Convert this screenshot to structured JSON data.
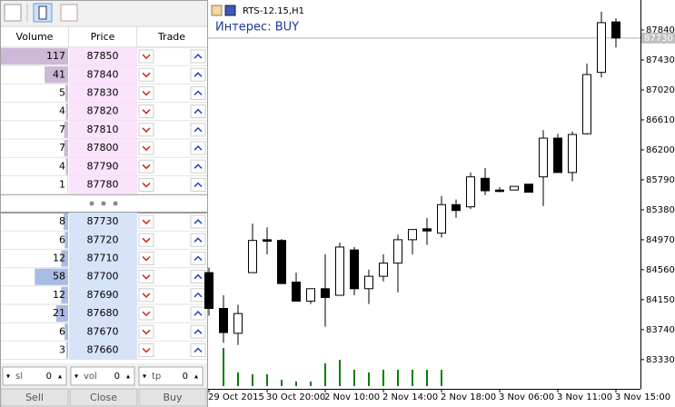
{
  "depth_of_market": {
    "headers": [
      "Volume",
      "Price",
      "Trade"
    ],
    "sell_rows": [
      {
        "volume": 117,
        "price": 87850
      },
      {
        "volume": 41,
        "price": 87840
      },
      {
        "volume": 5,
        "price": 87830
      },
      {
        "volume": 4,
        "price": 87820
      },
      {
        "volume": 7,
        "price": 87810
      },
      {
        "volume": 7,
        "price": 87800
      },
      {
        "volume": 4,
        "price": 87790
      },
      {
        "volume": 1,
        "price": 87780
      }
    ],
    "buy_rows": [
      {
        "volume": 8,
        "price": 87730
      },
      {
        "volume": 6,
        "price": 87720
      },
      {
        "volume": 12,
        "price": 87710
      },
      {
        "volume": 58,
        "price": 87700
      },
      {
        "volume": 12,
        "price": 87690
      },
      {
        "volume": 21,
        "price": 87680
      },
      {
        "volume": 6,
        "price": 87670
      },
      {
        "volume": 3,
        "price": 87660
      }
    ],
    "controls": [
      {
        "label": "sl",
        "value": 0
      },
      {
        "label": "vol",
        "value": 0
      },
      {
        "label": "tp",
        "value": 0
      }
    ],
    "buttons": [
      "Sell",
      "Close",
      "Buy"
    ]
  },
  "chart_data": {
    "type": "candlestick",
    "title": "RTS-12.15,H1",
    "annotation": "Интерес: BUY",
    "categories": [
      "29 Oct 2015",
      null,
      null,
      null,
      "30 Oct 20:00",
      null,
      null,
      null,
      "2 Nov 10:00",
      null,
      null,
      null,
      "2 Nov 14:00",
      null,
      null,
      null,
      "2 Nov 18:00",
      null,
      null,
      null,
      "3 Nov 06:00",
      null,
      null,
      null,
      "3 Nov 11:00",
      null,
      null,
      null,
      "3 Nov 15:00"
    ],
    "open": [
      84520,
      84030,
      83690,
      84520,
      84970,
      84960,
      84390,
      84130,
      84300,
      84210,
      84830,
      84300,
      84470,
      84650,
      84970,
      85120,
      85060,
      85450,
      85420,
      85810,
      85650,
      85650,
      85730,
      85830,
      86360,
      85890,
      86420,
      87260,
      87950
    ],
    "high": [
      84590,
      84210,
      84080,
      85190,
      85140,
      84980,
      84520,
      84300,
      84770,
      84930,
      84870,
      84560,
      84770,
      85040,
      85110,
      85270,
      85570,
      85520,
      85890,
      85950,
      85690,
      85700,
      85730,
      86470,
      86420,
      86450,
      87380,
      88090,
      88000
    ],
    "low": [
      83930,
      83560,
      83530,
      84520,
      84770,
      84370,
      84130,
      84090,
      83780,
      84210,
      84210,
      84090,
      84400,
      84250,
      84770,
      84900,
      85000,
      85270,
      85390,
      85580,
      85620,
      85650,
      85620,
      85430,
      85890,
      85770,
      86410,
      87190,
      87600
    ],
    "close": [
      84030,
      83700,
      83960,
      84960,
      84950,
      84370,
      84130,
      84300,
      84180,
      84870,
      84300,
      84470,
      84650,
      84970,
      85110,
      85090,
      85450,
      85370,
      85830,
      85640,
      85630,
      85700,
      85620,
      86360,
      85890,
      86410,
      87230,
      87940,
      87730
    ],
    "volume": [
      null,
      42,
      15,
      13,
      13,
      7,
      5,
      5,
      25,
      29,
      18,
      15,
      18,
      18,
      18,
      18,
      18,
      null,
      null,
      null,
      null,
      null,
      null,
      null,
      null,
      null,
      null,
      null,
      null
    ],
    "up_color": "#ffffff",
    "down_color": "#000000",
    "volume_color": "#008000",
    "last_price": 87730,
    "ylim": [
      82930,
      88250
    ],
    "yticks": [
      87840,
      87430,
      87020,
      86610,
      86200,
      85790,
      85380,
      84970,
      84560,
      84150,
      83740,
      83330
    ]
  }
}
